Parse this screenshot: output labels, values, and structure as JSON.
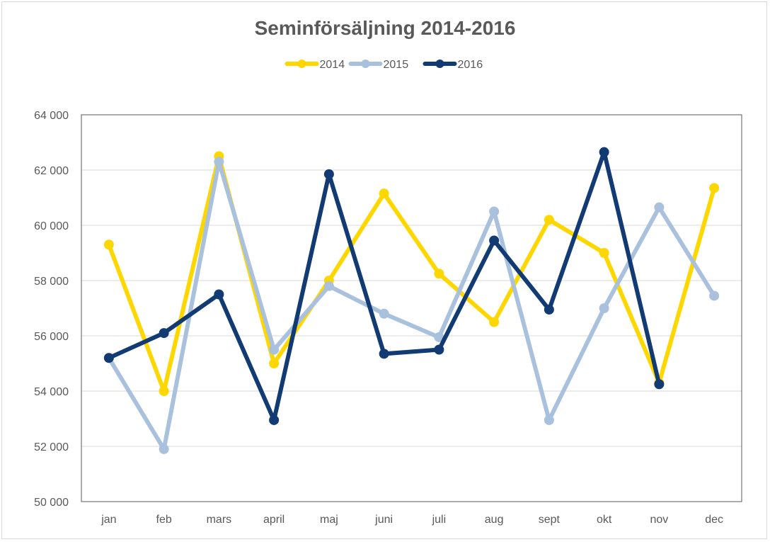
{
  "chart_data": {
    "type": "line",
    "title": "Seminförsäljning 2014-2016",
    "categories": [
      "jan",
      "feb",
      "mars",
      "april",
      "maj",
      "juni",
      "juli",
      "aug",
      "sept",
      "okt",
      "nov",
      "dec"
    ],
    "ylim": [
      50000,
      64000
    ],
    "yticks": [
      50000,
      52000,
      54000,
      56000,
      58000,
      60000,
      62000,
      64000
    ],
    "ytick_labels": [
      "50 000",
      "52 000",
      "54 000",
      "56 000",
      "58 000",
      "60 000",
      "62 000",
      "64 000"
    ],
    "grid": true,
    "legend": "top-center",
    "series": [
      {
        "name": "2014",
        "color": "#FFD700",
        "values": [
          59300,
          54000,
          62500,
          55000,
          58000,
          61150,
          58250,
          56500,
          60200,
          59000,
          54300,
          61350
        ]
      },
      {
        "name": "2015",
        "color": "#A9C1DD",
        "values": [
          55200,
          51900,
          62300,
          55500,
          57800,
          56800,
          55950,
          60500,
          52950,
          57000,
          60650,
          57450
        ]
      },
      {
        "name": "2016",
        "color": "#123A73",
        "values": [
          55200,
          56100,
          57500,
          52950,
          61850,
          55350,
          55500,
          59450,
          56950,
          62650,
          54250,
          null
        ]
      }
    ]
  }
}
